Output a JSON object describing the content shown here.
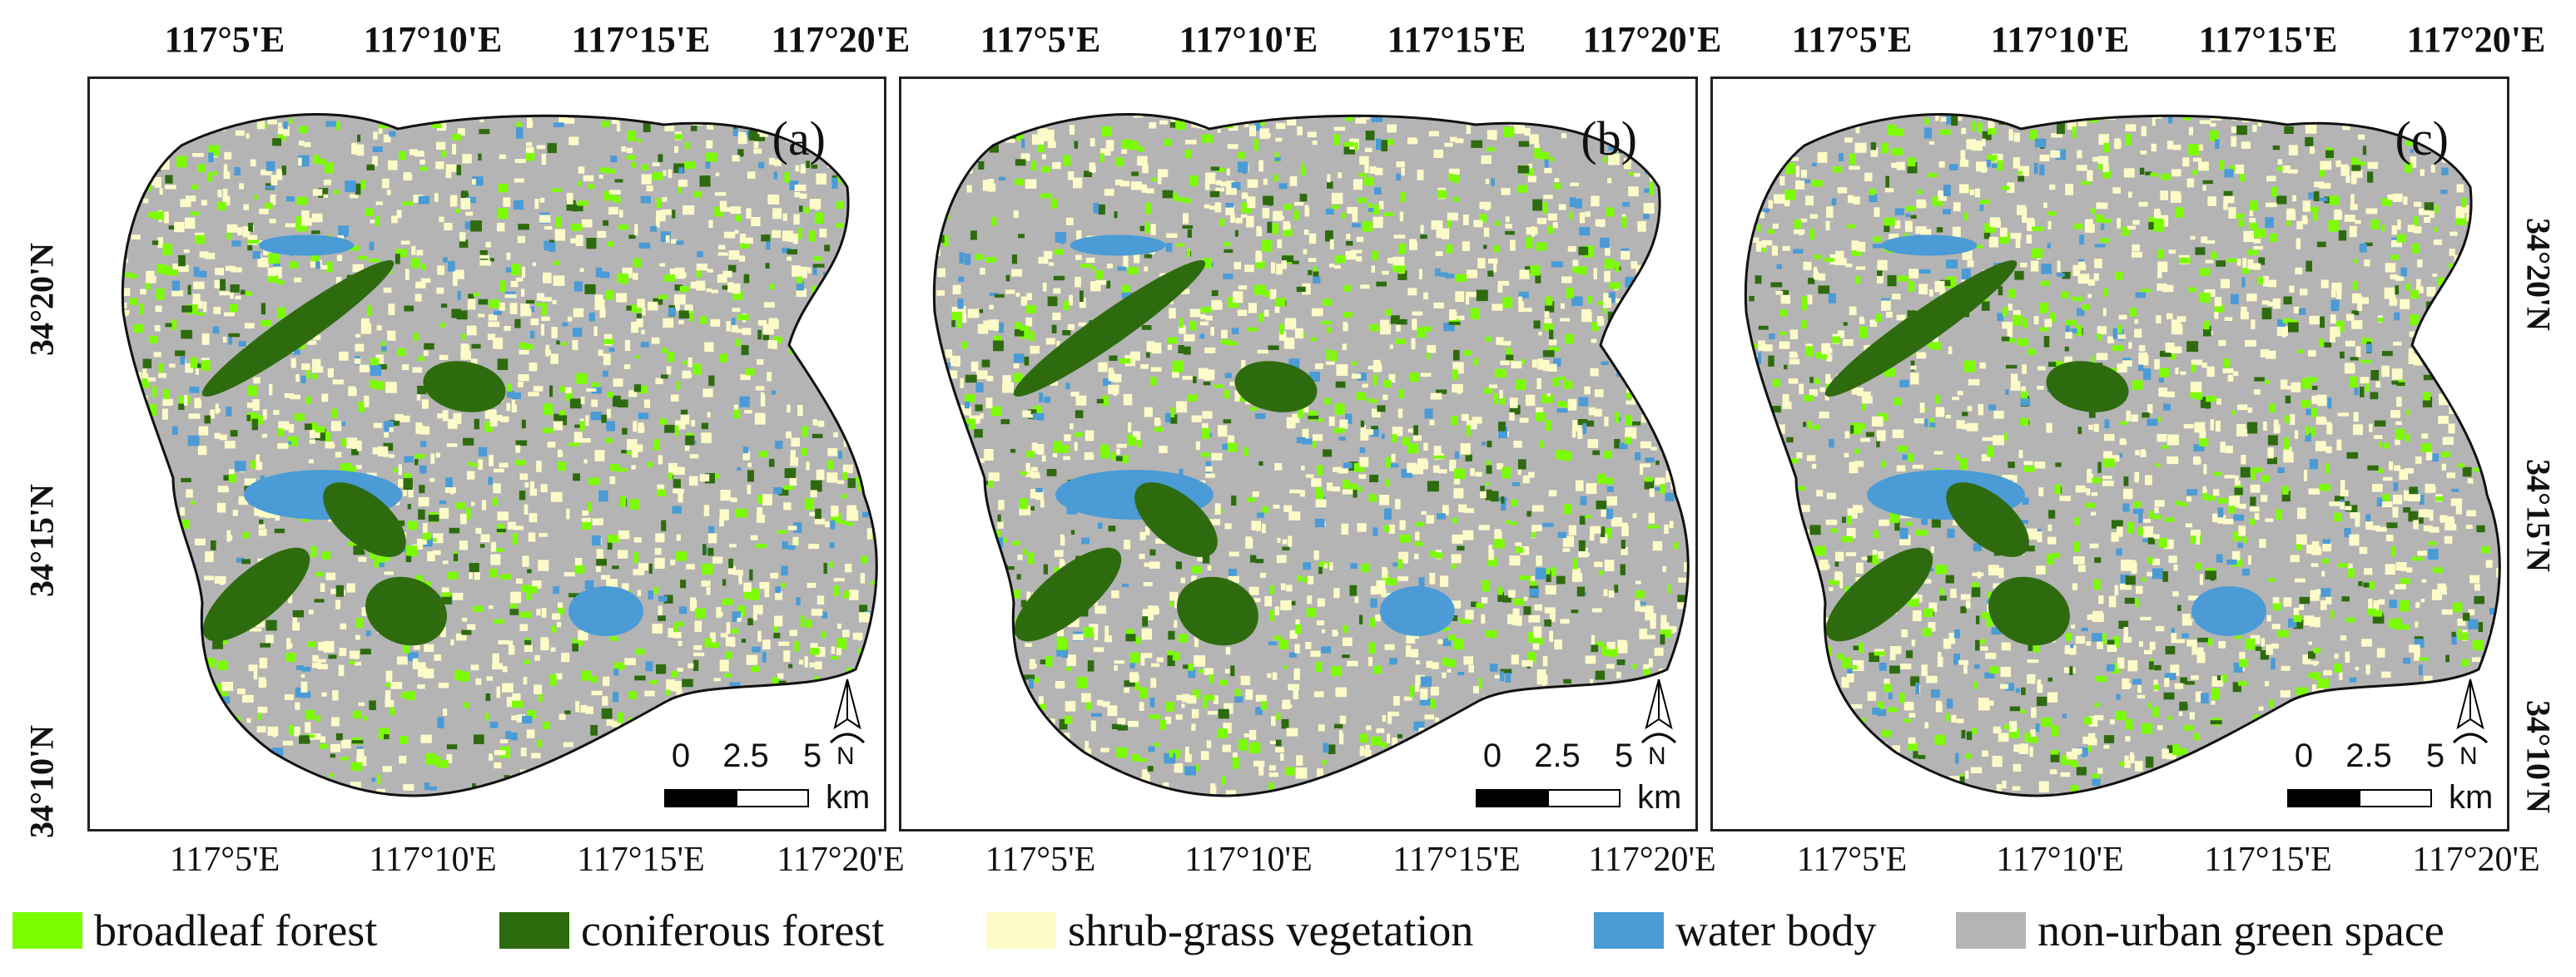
{
  "maps": {
    "top_ticks": [
      "117°5'E",
      "117°10'E",
      "117°15'E",
      "117°20'E"
    ],
    "bottom_ticks": [
      "117°5'E",
      "117°10'E",
      "117°15'E",
      "117°20'E"
    ],
    "lat_ticks": [
      "34°20'N",
      "34°15'N",
      "34°10'N"
    ],
    "panels": [
      {
        "label": "(a)"
      },
      {
        "label": "(b)"
      },
      {
        "label": "(c)"
      }
    ],
    "scale": {
      "v0": "0",
      "v1": "2.5",
      "v2": "5",
      "unit": "km"
    },
    "north_label": "N"
  },
  "legend": {
    "items": [
      {
        "label": "broadleaf forest",
        "color": "#7cfc00"
      },
      {
        "label": "coniferous forest",
        "color": "#2e6b0e"
      },
      {
        "label": "shrub-grass vegetation",
        "color": "#fdfbc8"
      },
      {
        "label": "water body",
        "color": "#4a9bd6"
      },
      {
        "label": "non-urban green space",
        "color": "#b4b4b4"
      }
    ]
  }
}
